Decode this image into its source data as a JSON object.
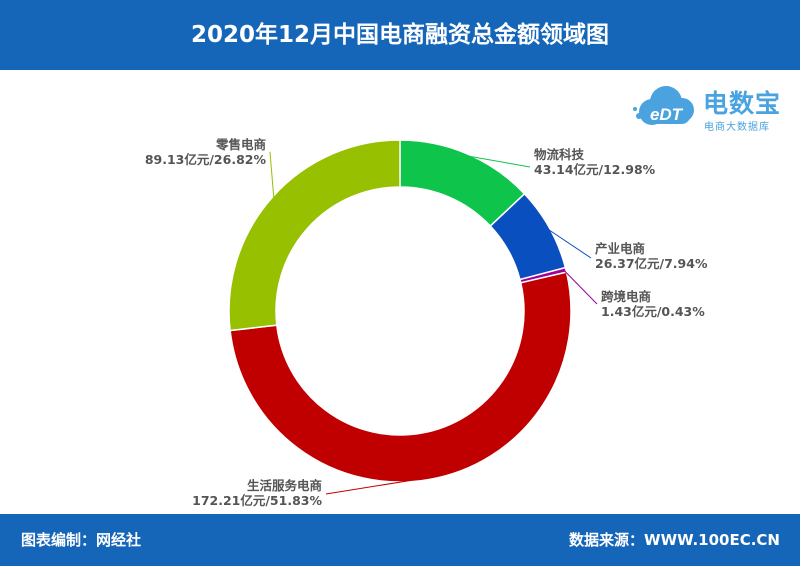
{
  "title": "2020年12月中国电商融资总金额领域图",
  "footer": {
    "left": "图表编制：网经社",
    "right": "数据来源：WWW.100EC.CN"
  },
  "logo": {
    "name": "电数宝",
    "sub": "电商大数据库",
    "mark": "eDT",
    "color": "#4aa3df"
  },
  "chart_data": {
    "type": "pie",
    "variant": "donut",
    "start": "top, clockwise",
    "unit": "亿元",
    "slices": [
      {
        "name": "物流科技",
        "value": 43.14,
        "percent": 12.98,
        "label": "43.14亿元/12.98%",
        "color": "#0fc44a"
      },
      {
        "name": "产业电商",
        "value": 26.37,
        "percent": 7.94,
        "label": "26.37亿元/7.94%",
        "color": "#0a4fc0"
      },
      {
        "name": "跨境电商",
        "value": 1.43,
        "percent": 0.43,
        "label": "1.43亿元/0.43%",
        "color": "#a0009a"
      },
      {
        "name": "生活服务电商",
        "value": 172.21,
        "percent": 51.83,
        "label": "172.21亿元/51.83%",
        "color": "#c00000"
      },
      {
        "name": "零售电商",
        "value": 89.13,
        "percent": 26.82,
        "label": "89.13亿元/26.82%",
        "color": "#96c000"
      }
    ]
  }
}
